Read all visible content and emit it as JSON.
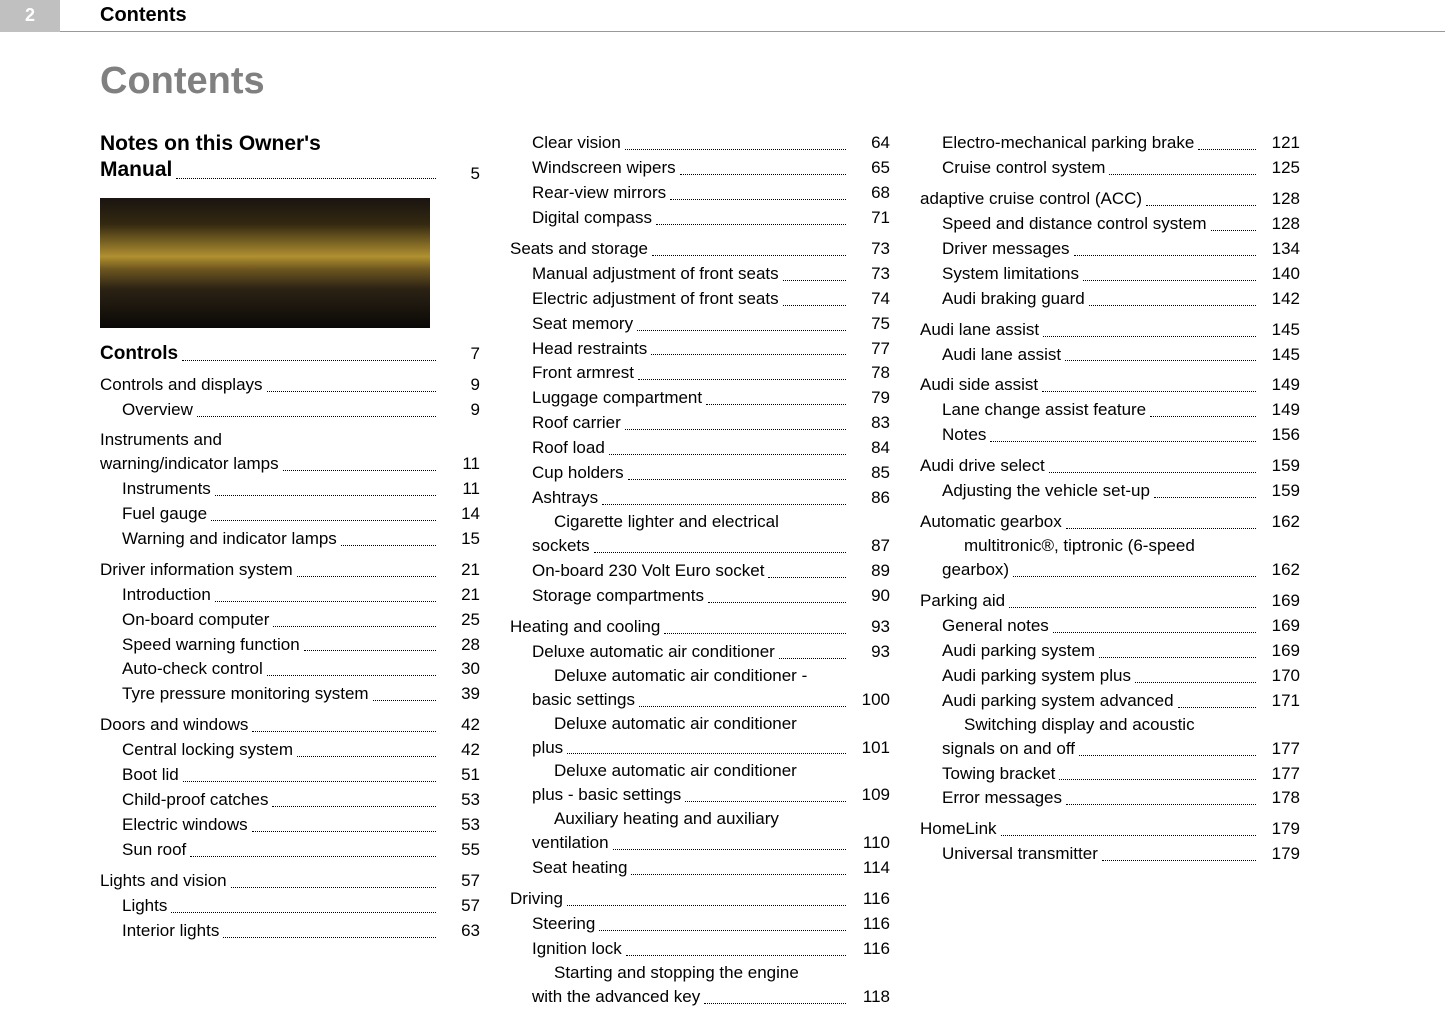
{
  "header": {
    "page_number": "2",
    "running_title": "Contents"
  },
  "main_heading": "Contents",
  "intro": {
    "title_line1": "Notes on this Owner's",
    "title_line2": "Manual",
    "page": "5"
  },
  "columns": [
    [
      {
        "level": "section",
        "label": "Controls",
        "page": "7"
      },
      {
        "level": "sub",
        "label": "Controls and displays",
        "page": "9"
      },
      {
        "level": "item",
        "label": "Overview",
        "page": "9"
      },
      {
        "level": "sub",
        "label_lines": [
          "Instruments and",
          "warning/indicator lamps"
        ],
        "page": "11"
      },
      {
        "level": "item",
        "label": "Instruments",
        "page": "11"
      },
      {
        "level": "item",
        "label": "Fuel gauge",
        "page": "14"
      },
      {
        "level": "item",
        "label": "Warning and indicator lamps",
        "page": "15"
      },
      {
        "level": "sub",
        "label": "Driver information system",
        "page": "21"
      },
      {
        "level": "item",
        "label": "Introduction",
        "page": "21"
      },
      {
        "level": "item",
        "label": "On-board computer",
        "page": "25"
      },
      {
        "level": "item",
        "label": "Speed warning function",
        "page": "28"
      },
      {
        "level": "item",
        "label": "Auto-check control",
        "page": "30"
      },
      {
        "level": "item",
        "label": "Tyre pressure monitoring system",
        "page": "39"
      },
      {
        "level": "sub",
        "label": "Doors and windows",
        "page": "42"
      },
      {
        "level": "item",
        "label": "Central locking system",
        "page": "42"
      },
      {
        "level": "item",
        "label": "Boot lid",
        "page": "51"
      },
      {
        "level": "item",
        "label": "Child-proof catches",
        "page": "53"
      },
      {
        "level": "item",
        "label": "Electric windows",
        "page": "53"
      },
      {
        "level": "item",
        "label": "Sun roof",
        "page": "55"
      },
      {
        "level": "sub",
        "label": "Lights and vision",
        "page": "57"
      },
      {
        "level": "item",
        "label": "Lights",
        "page": "57"
      },
      {
        "level": "item",
        "label": "Interior lights",
        "page": "63"
      }
    ],
    [
      {
        "level": "item",
        "label": "Clear vision",
        "page": "64"
      },
      {
        "level": "item",
        "label": "Windscreen wipers",
        "page": "65"
      },
      {
        "level": "item",
        "label": "Rear-view mirrors",
        "page": "68"
      },
      {
        "level": "item",
        "label": "Digital compass",
        "page": "71"
      },
      {
        "level": "sub",
        "label": "Seats and storage",
        "page": "73"
      },
      {
        "level": "item",
        "label": "Manual adjustment of front seats",
        "page": "73"
      },
      {
        "level": "item",
        "label": "Electric adjustment of front seats",
        "page": "74"
      },
      {
        "level": "item",
        "label": "Seat memory",
        "page": "75"
      },
      {
        "level": "item",
        "label": "Head restraints",
        "page": "77"
      },
      {
        "level": "item",
        "label": "Front armrest",
        "page": "78"
      },
      {
        "level": "item",
        "label": "Luggage compartment",
        "page": "79"
      },
      {
        "level": "item",
        "label": "Roof carrier",
        "page": "83"
      },
      {
        "level": "item",
        "label": "Roof load",
        "page": "84"
      },
      {
        "level": "item",
        "label": "Cup holders",
        "page": "85"
      },
      {
        "level": "item",
        "label": "Ashtrays",
        "page": "86"
      },
      {
        "level": "item",
        "label_lines": [
          "Cigarette lighter and electrical",
          "sockets"
        ],
        "page": "87"
      },
      {
        "level": "item",
        "label": "On-board 230 Volt Euro socket",
        "page": "89"
      },
      {
        "level": "item",
        "label": "Storage compartments",
        "page": "90"
      },
      {
        "level": "sub",
        "label": "Heating and cooling",
        "page": "93"
      },
      {
        "level": "item",
        "label": "Deluxe automatic air conditioner",
        "page": "93"
      },
      {
        "level": "item",
        "label_lines": [
          "Deluxe automatic air conditioner -",
          "basic settings"
        ],
        "page": "100"
      },
      {
        "level": "item",
        "label_lines": [
          "Deluxe automatic air conditioner",
          "plus"
        ],
        "page": "101"
      },
      {
        "level": "item",
        "label_lines": [
          "Deluxe automatic air conditioner",
          "plus - basic settings"
        ],
        "page": "109"
      },
      {
        "level": "item",
        "label_lines": [
          "Auxiliary heating and auxiliary",
          "ventilation"
        ],
        "page": "110"
      },
      {
        "level": "item",
        "label": "Seat heating",
        "page": "114"
      },
      {
        "level": "sub",
        "label": "Driving",
        "page": "116"
      },
      {
        "level": "item",
        "label": "Steering",
        "page": "116"
      },
      {
        "level": "item",
        "label": "Ignition lock",
        "page": "116"
      },
      {
        "level": "item",
        "label_lines": [
          "Starting and stopping the engine",
          "with the advanced key"
        ],
        "page": "118"
      }
    ],
    [
      {
        "level": "item",
        "label": "Electro-mechanical parking brake",
        "page": "121"
      },
      {
        "level": "item",
        "label": "Cruise control system",
        "page": "125"
      },
      {
        "level": "sub",
        "label": "adaptive cruise control (ACC)",
        "page": "128"
      },
      {
        "level": "item",
        "label": "Speed and distance control system",
        "page": "128"
      },
      {
        "level": "item",
        "label": "Driver messages",
        "page": "134"
      },
      {
        "level": "item",
        "label": "System limitations",
        "page": "140"
      },
      {
        "level": "item",
        "label": "Audi braking guard",
        "page": "142"
      },
      {
        "level": "sub",
        "label": "Audi lane assist",
        "page": "145"
      },
      {
        "level": "item",
        "label": "Audi lane assist",
        "page": "145"
      },
      {
        "level": "sub",
        "label": "Audi side assist",
        "page": "149"
      },
      {
        "level": "item",
        "label": "Lane change assist feature",
        "page": "149"
      },
      {
        "level": "item",
        "label": "Notes",
        "page": "156"
      },
      {
        "level": "sub",
        "label": "Audi drive select",
        "page": "159"
      },
      {
        "level": "item",
        "label": "Adjusting the vehicle set-up",
        "page": "159"
      },
      {
        "level": "sub",
        "label": "Automatic gearbox",
        "page": "162"
      },
      {
        "level": "item",
        "label_lines": [
          "multitronic®, tiptronic (6-speed",
          "gearbox)"
        ],
        "page": "162"
      },
      {
        "level": "sub",
        "label": "Parking aid",
        "page": "169"
      },
      {
        "level": "item",
        "label": "General notes",
        "page": "169"
      },
      {
        "level": "item",
        "label": "Audi parking system",
        "page": "169"
      },
      {
        "level": "item",
        "label": "Audi parking system plus",
        "page": "170"
      },
      {
        "level": "item",
        "label": "Audi parking system advanced",
        "page": "171"
      },
      {
        "level": "item",
        "label_lines": [
          "Switching display and acoustic",
          "signals on and off"
        ],
        "page": "177"
      },
      {
        "level": "item",
        "label": "Towing bracket",
        "page": "177"
      },
      {
        "level": "item",
        "label": "Error messages",
        "page": "178"
      },
      {
        "level": "sub",
        "label": "HomeLink",
        "page": "179"
      },
      {
        "level": "item",
        "label": "Universal transmitter",
        "page": "179"
      }
    ]
  ]
}
